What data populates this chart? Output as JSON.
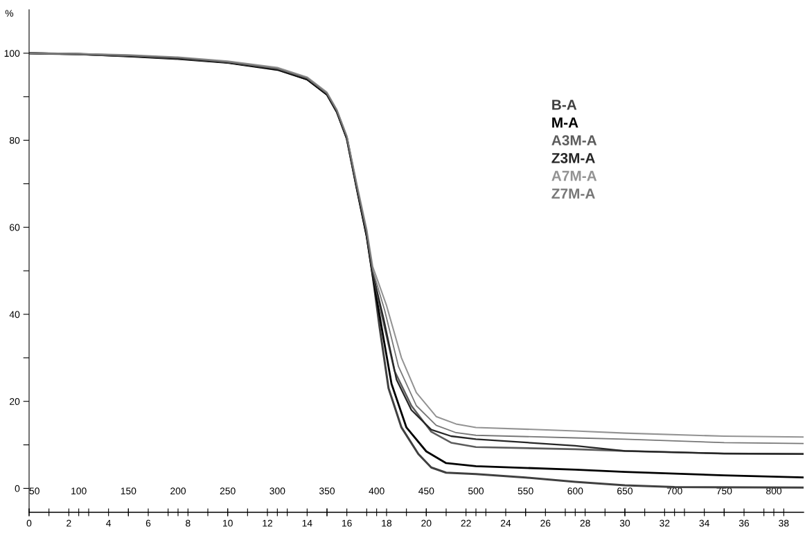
{
  "chart_data": {
    "type": "line",
    "ylabel": "%",
    "xlim": [
      50,
      830
    ],
    "xticks": [
      50,
      100,
      150,
      200,
      250,
      300,
      350,
      400,
      450,
      500,
      550,
      600,
      650,
      700,
      750,
      800
    ],
    "x2lim": [
      0,
      39
    ],
    "x2ticks": [
      0,
      {
        "value": 1,
        "label": null
      },
      2,
      {
        "value": 3,
        "label": null
      },
      4,
      {
        "value": 5,
        "label": null
      },
      6,
      {
        "value": 7,
        "label": null
      },
      8,
      {
        "value": 9,
        "label": null
      },
      10,
      {
        "value": 11,
        "label": null
      },
      12,
      {
        "value": 13,
        "label": null
      },
      14,
      {
        "value": 15,
        "label": null
      },
      16,
      {
        "value": 17,
        "label": null
      },
      18,
      {
        "value": 19,
        "label": null
      },
      20,
      {
        "value": 21,
        "label": null
      },
      22,
      {
        "value": 23,
        "label": null
      },
      24,
      {
        "value": 25,
        "label": null
      },
      26,
      {
        "value": 27,
        "label": null
      },
      28,
      {
        "value": 29,
        "label": null
      },
      30,
      {
        "value": 31,
        "label": null
      },
      32,
      {
        "value": 33,
        "label": null
      },
      34,
      {
        "value": 35,
        "label": null
      },
      36,
      {
        "value": 37,
        "label": null
      },
      38
    ],
    "ylim": [
      -5.5,
      110
    ],
    "yticks": [
      0,
      {
        "value": 10,
        "label": null
      },
      20,
      {
        "value": 30,
        "label": null
      },
      40,
      {
        "value": 50,
        "label": null
      },
      60,
      {
        "value": 70,
        "label": null
      },
      80,
      {
        "value": 90,
        "label": null
      },
      100
    ],
    "grid": false,
    "legend": "right",
    "marker": "none",
    "line_style": "solid",
    "series": [
      {
        "name": "B-A",
        "color": "#404040",
        "x": [
          50,
          100,
          150,
          200,
          250,
          300,
          330,
          350,
          360,
          370,
          380,
          390,
          396,
          403,
          412,
          425,
          442,
          455,
          470,
          500,
          550,
          600,
          650,
          700,
          830
        ],
        "values": [
          100,
          99.8,
          99.4,
          98.9,
          97.9,
          96.3,
          94,
          90.5,
          86.5,
          80.4,
          69,
          58,
          49,
          37,
          23,
          14,
          7.9,
          4.8,
          3.6,
          3.3,
          2.5,
          1.5,
          0.7,
          0.3,
          0.2
        ]
      },
      {
        "name": "M-A",
        "color": "#000000",
        "x": [
          50,
          100,
          150,
          200,
          250,
          300,
          330,
          350,
          360,
          370,
          380,
          390,
          396,
          405,
          415,
          430,
          450,
          470,
          500,
          600,
          650,
          750,
          830
        ],
        "values": [
          100,
          99.8,
          99.3,
          98.7,
          97.8,
          96.2,
          94,
          90.5,
          86.5,
          80.4,
          69,
          58,
          49,
          37,
          24,
          14,
          8.5,
          5.8,
          5.1,
          4.3,
          3.8,
          3,
          2.5
        ]
      },
      {
        "name": "A3M-A",
        "color": "#5c5c5c",
        "x": [
          50,
          100,
          150,
          200,
          250,
          300,
          330,
          350,
          360,
          370,
          380,
          390,
          396,
          406,
          418,
          435,
          455,
          475,
          500,
          600,
          650,
          750,
          830
        ],
        "values": [
          100,
          99.8,
          99.4,
          98.8,
          97.9,
          96.4,
          94.2,
          90.7,
          86.7,
          80.6,
          69.3,
          58.4,
          49.5,
          39,
          27,
          19,
          13,
          10.5,
          9.5,
          9,
          8.6,
          8,
          7.9
        ]
      },
      {
        "name": "Z3M-A",
        "color": "#262626",
        "x": [
          50,
          100,
          150,
          200,
          250,
          300,
          330,
          350,
          360,
          370,
          380,
          390,
          396,
          407,
          420,
          435,
          455,
          475,
          500,
          600,
          650,
          750,
          830
        ],
        "values": [
          100,
          99.8,
          99.4,
          98.8,
          97.9,
          96.4,
          94.2,
          90.7,
          86.7,
          80.6,
          69.3,
          58.4,
          49.5,
          39,
          25,
          18,
          13.5,
          12,
          11.3,
          9.8,
          8.6,
          8,
          7.9
        ]
      },
      {
        "name": "A7M-A",
        "color": "#939393",
        "x": [
          50,
          100,
          150,
          200,
          250,
          300,
          330,
          350,
          360,
          370,
          380,
          390,
          396,
          410,
          425,
          440,
          460,
          480,
          500,
          600,
          650,
          750,
          830
        ],
        "values": [
          100,
          99.9,
          99.6,
          99.1,
          98.2,
          96.7,
          94.5,
          91,
          87,
          81,
          70,
          59.5,
          51,
          42,
          30,
          22,
          16.5,
          14.8,
          14,
          13.2,
          12.7,
          12,
          11.8
        ]
      },
      {
        "name": "Z7M-A",
        "color": "#777777",
        "x": [
          50,
          100,
          150,
          200,
          250,
          300,
          330,
          350,
          360,
          370,
          380,
          390,
          396,
          408,
          422,
          440,
          460,
          480,
          500,
          600,
          650,
          750,
          830
        ],
        "values": [
          100,
          99.8,
          99.5,
          99,
          98,
          96.5,
          94.3,
          90.8,
          86.8,
          80.8,
          69.6,
          59,
          50.2,
          41,
          28,
          19,
          14.5,
          12.8,
          12.2,
          11.6,
          11.3,
          10.5,
          10.3
        ]
      }
    ]
  }
}
